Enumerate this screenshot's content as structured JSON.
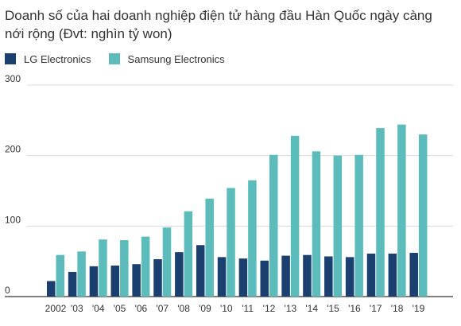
{
  "chart_data": {
    "type": "bar",
    "title": "Doanh số của hai doanh nghiệp điện tử hàng đầu Hàn Quốc ngày càng nới rộng (Đvt: nghìn tỷ won)",
    "xlabel": "",
    "ylabel": "",
    "categories": [
      "2002",
      "'03",
      "'04",
      "'05",
      "'06",
      "'07",
      "'08",
      "'09",
      "'10",
      "'11",
      "'12",
      "'13",
      "'14",
      "'15",
      "'16",
      "'17",
      "'18",
      "'19"
    ],
    "series": [
      {
        "name": "LG Electronics",
        "color": "#1b3f6e",
        "values": [
          22,
          35,
          43,
          44,
          46,
          53,
          63,
          73,
          56,
          54,
          51,
          58,
          59,
          57,
          56,
          61,
          61,
          62
        ]
      },
      {
        "name": "Samsung Electronics",
        "color": "#5bbcbb",
        "values": [
          59,
          64,
          81,
          80,
          85,
          98,
          121,
          139,
          154,
          165,
          201,
          228,
          206,
          200,
          201,
          239,
          244,
          230
        ]
      }
    ],
    "ylim": [
      0,
      300
    ],
    "yticks": [
      "0",
      "100",
      "200",
      "300"
    ],
    "grid": true,
    "legend": "top-left"
  }
}
